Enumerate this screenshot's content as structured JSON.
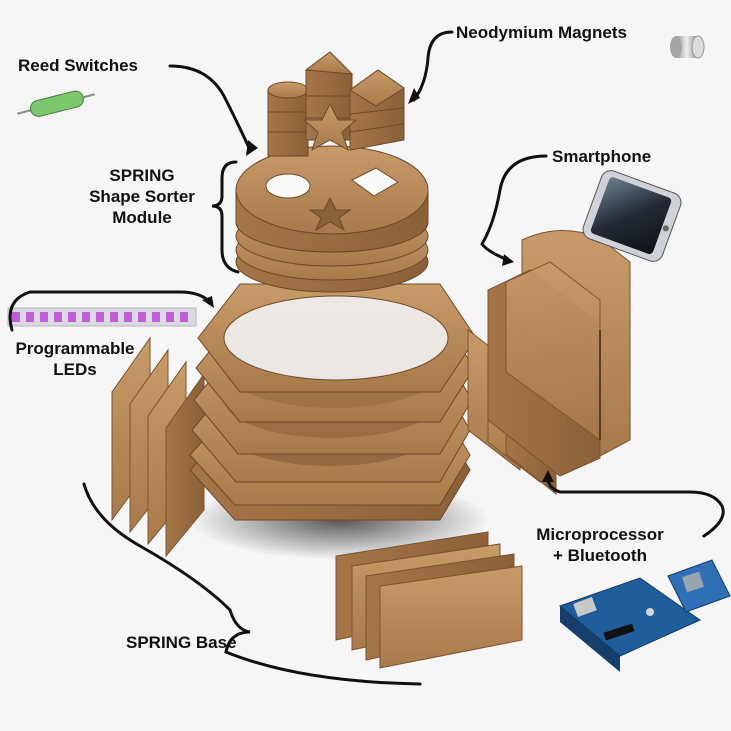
{
  "labels": {
    "neodymium_magnets": "Neodymium Magnets",
    "reed_switches": "Reed Switches",
    "shape_sorter_line1": "SPRING",
    "shape_sorter_line2": "Shape Sorter",
    "shape_sorter_line3": "Module",
    "smartphone": "Smartphone",
    "leds_line1": "Programmable",
    "leds_line2": "LEDs",
    "micro_line1": "Microprocessor",
    "micro_line2": "+ Bluetooth",
    "spring_base": "SPRING Base"
  },
  "colors": {
    "wood": "#b48655",
    "wood_dark": "#8a6239",
    "wood_light": "#c79a68",
    "board_blue": "#1f5d9b",
    "led_strip": "#d9d9e0"
  }
}
